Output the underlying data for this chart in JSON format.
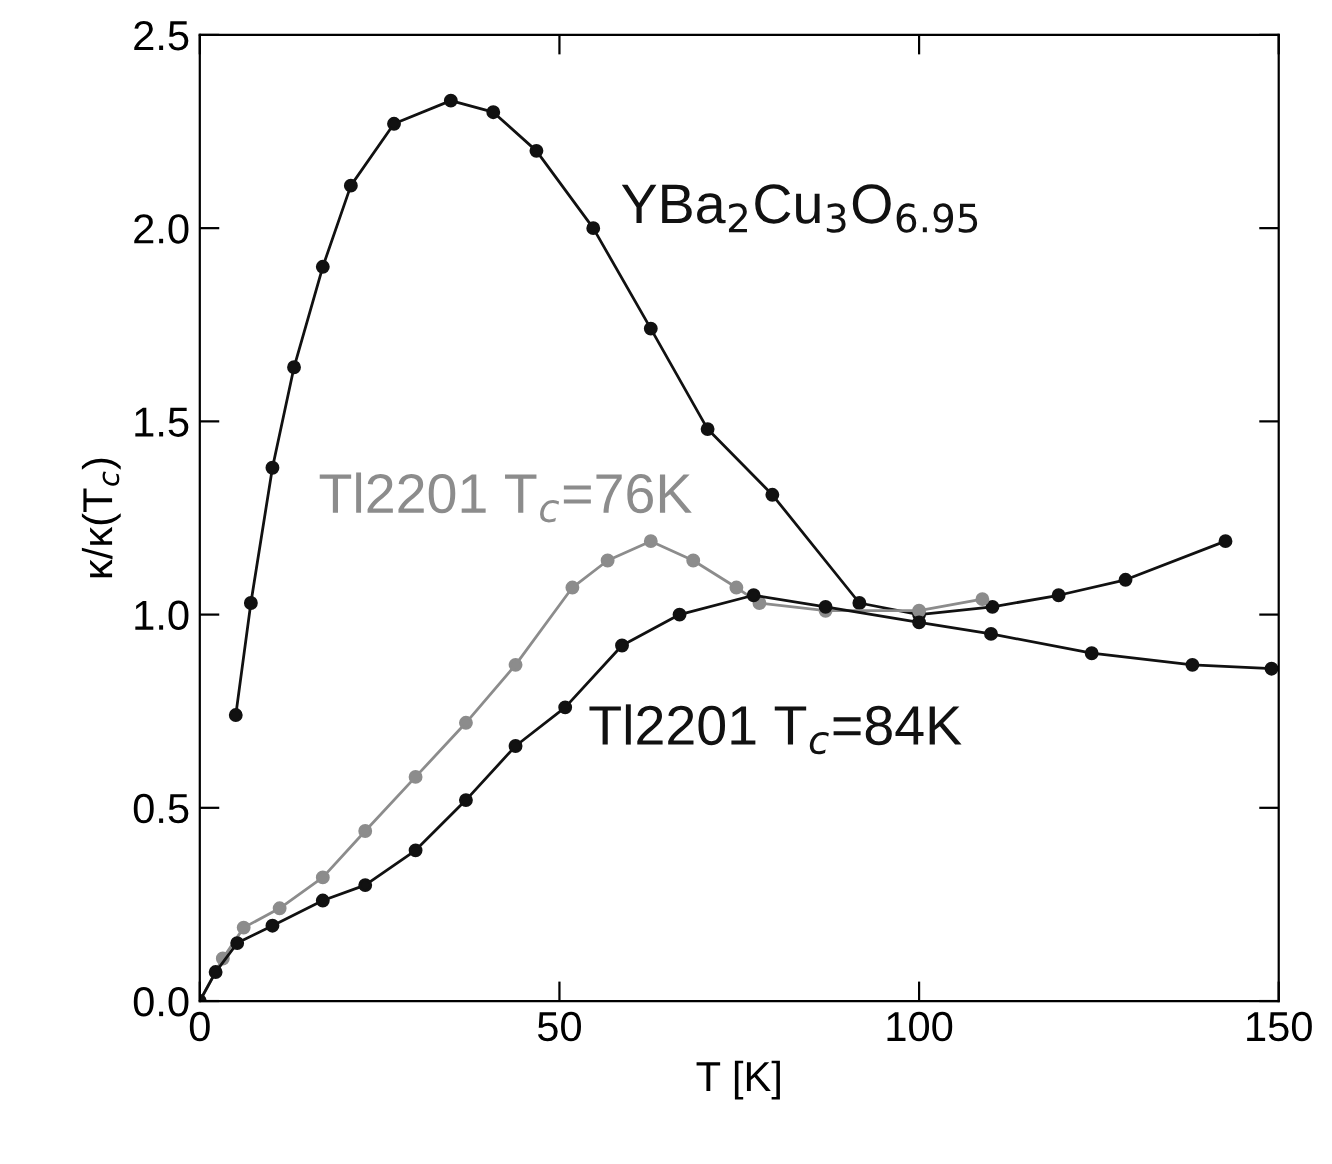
{
  "chart_data": {
    "type": "line",
    "xlabel": "T [K]",
    "ylabel": "κ/κ(T$_{c}$)",
    "marker": "circle",
    "line_style": "solid",
    "grid": false,
    "legend": false,
    "xlim": [
      0,
      150
    ],
    "xticks": [
      0,
      50,
      100,
      150
    ],
    "ylim": [
      0,
      2.5
    ],
    "yticks": [
      {
        "value": 0,
        "label": "0.0"
      },
      {
        "value": 0.5,
        "label": "0.5"
      },
      {
        "value": 1,
        "label": "1.0"
      },
      {
        "value": 1.5,
        "label": "1.5"
      },
      {
        "value": 2,
        "label": "2.0"
      },
      {
        "value": 2.5,
        "label": "2.5"
      }
    ],
    "series": [
      {
        "name": "YBa$_{2}$Cu$_{3}$O$_{6.95}$",
        "color": "#111111",
        "x": [
          5.0,
          7.1,
          10.1,
          13.1,
          17.1,
          21.0,
          27.0,
          34.9,
          40.8,
          46.8,
          54.7,
          62.7,
          70.6,
          79.6,
          91.7,
          100,
          110.2,
          119.4,
          128.7,
          142.6
        ],
        "values": [
          0.74,
          1.03,
          1.38,
          1.64,
          1.9,
          2.11,
          2.27,
          2.33,
          2.3,
          2.2,
          2.0,
          1.74,
          1.48,
          1.31,
          1.03,
          1.0,
          1.02,
          1.05,
          1.09,
          1.19
        ]
      },
      {
        "name": "Tl2201 T$_{c}$=76K",
        "color": "#8c8c8c",
        "x": [
          0,
          3.2,
          6.1,
          11.1,
          17.1,
          23.0,
          30.0,
          37.0,
          43.9,
          51.8,
          56.7,
          62.7,
          68.6,
          74.6,
          77.8,
          87.0,
          100,
          108.8
        ],
        "values": [
          0,
          0.11,
          0.19,
          0.24,
          0.32,
          0.44,
          0.58,
          0.72,
          0.87,
          1.07,
          1.14,
          1.19,
          1.14,
          1.07,
          1.03,
          1.01,
          1.01,
          1.04
        ]
      },
      {
        "name": "Tl2201 T$_{c}$=84K",
        "color": "#111111",
        "x": [
          0,
          2.2,
          5.2,
          10.1,
          17.1,
          23.0,
          30.0,
          37.0,
          43.9,
          50.8,
          58.7,
          66.7,
          77.0,
          87.0,
          100,
          110,
          124,
          138,
          149
        ],
        "values": [
          0,
          0.075,
          0.15,
          0.195,
          0.26,
          0.3,
          0.39,
          0.52,
          0.66,
          0.76,
          0.92,
          1.0,
          1.05,
          1.02,
          0.98,
          0.95,
          0.9,
          0.87,
          0.86
        ]
      }
    ]
  }
}
